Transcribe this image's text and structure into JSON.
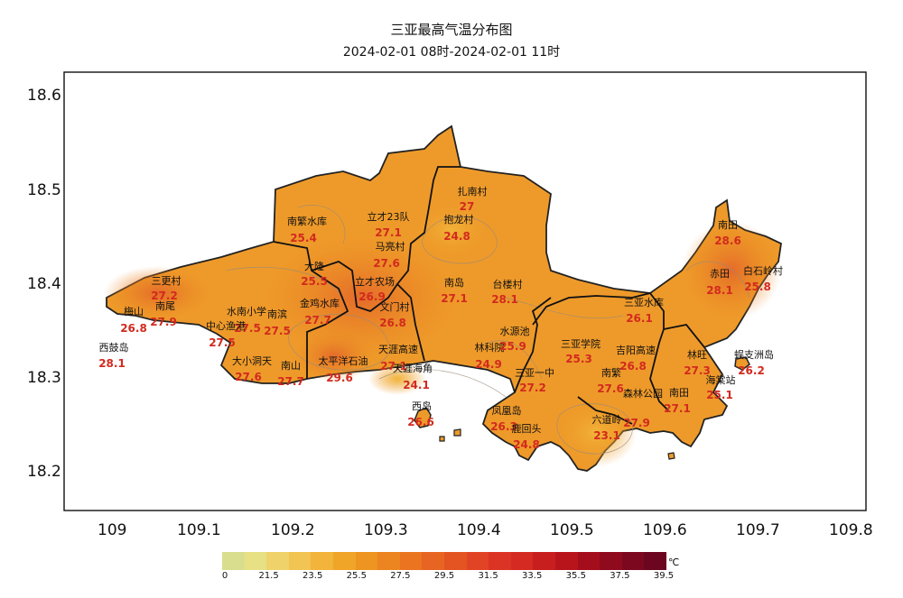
{
  "title": "三亚最高气温分布图",
  "subtitle": "2024-02-01 08时-2024-02-01 11时",
  "axes": {
    "x_ticks": [
      "109",
      "109.1",
      "109.2",
      "109.3",
      "109.4",
      "109.5",
      "109.6",
      "109.7",
      "109.8"
    ],
    "y_ticks": [
      "18.6",
      "18.5",
      "18.4",
      "18.3",
      "18.2"
    ]
  },
  "legend": {
    "unit": "℃",
    "tick_labels": [
      "0",
      "21.5",
      "23.5",
      "25.5",
      "27.5",
      "29.5",
      "31.5",
      "33.5",
      "35.5",
      "37.5",
      "39.5"
    ],
    "colors": [
      "#d8de8e",
      "#e8e084",
      "#f0d26a",
      "#f2c454",
      "#f2b43a",
      "#f0a428",
      "#ee9420",
      "#ec8420",
      "#ea7420",
      "#e86422",
      "#e45422",
      "#e04424",
      "#dc3424",
      "#d42a22",
      "#c81e1e",
      "#b8141c",
      "#a40e1c",
      "#900a1e",
      "#7c0820",
      "#6c0620"
    ]
  },
  "stations": [
    {
      "name": "南繁水库",
      "value": "25.4"
    },
    {
      "name": "立才23队",
      "value": "27.1"
    },
    {
      "name": "扎南村",
      "value": "27"
    },
    {
      "name": "抱龙村",
      "value": "24.8"
    },
    {
      "name": "马亮村",
      "value": "27.6"
    },
    {
      "name": "大隆",
      "value": "25.5"
    },
    {
      "name": "三更村",
      "value": "27.2"
    },
    {
      "name": "梅山",
      "value": "26.8"
    },
    {
      "name": "南尾",
      "value": "27.9"
    },
    {
      "name": "水南小学",
      "value": "27.5"
    },
    {
      "name": "南滨",
      "value": "27.5"
    },
    {
      "name": "中心渔港",
      "value": "27.5"
    },
    {
      "name": "立才农场",
      "value": "26.9"
    },
    {
      "name": "金鸡水库",
      "value": "27.7"
    },
    {
      "name": "文门村",
      "value": "26.8"
    },
    {
      "name": "南岛",
      "value": "27.1"
    },
    {
      "name": "台楼村",
      "value": "28.1"
    },
    {
      "name": "西鼓岛",
      "value": "28.1"
    },
    {
      "name": "大小洞天",
      "value": "27.6"
    },
    {
      "name": "南山",
      "value": "27.7"
    },
    {
      "name": "太平洋石油",
      "value": "29.6"
    },
    {
      "name": "天涯高速",
      "value": "27.1"
    },
    {
      "name": "天涯海角",
      "value": "24.1"
    },
    {
      "name": "西岛",
      "value": "26.6"
    },
    {
      "name": "林科院",
      "value": "24.9"
    },
    {
      "name": "水源池",
      "value": "25.9"
    },
    {
      "name": "三亚学院",
      "value": "25.3"
    },
    {
      "name": "三亚一中",
      "value": "27.2"
    },
    {
      "name": "凤凰岛",
      "value": "26.3"
    },
    {
      "name": "鹿回头",
      "value": "24.8"
    },
    {
      "name": "六道岭",
      "value": "23.1"
    },
    {
      "name": "吉阳高速",
      "value": "26.8"
    },
    {
      "name": "南繁",
      "value": "27.6"
    },
    {
      "name": "森林公园",
      "value": "27.9"
    },
    {
      "name": "南田",
      "value": "27.1"
    },
    {
      "name": "三亚水库",
      "value": "26.1"
    },
    {
      "name": "南田",
      "value": "28.6"
    },
    {
      "name": "赤田",
      "value": "28.1"
    },
    {
      "name": "白石岭村",
      "value": "25.8"
    },
    {
      "name": "林旺",
      "value": "27.3"
    },
    {
      "name": "蜈支洲岛",
      "value": "26.2"
    },
    {
      "name": "海棠站",
      "value": "25.1"
    }
  ]
}
